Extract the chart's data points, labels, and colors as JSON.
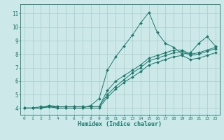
{
  "xlabel": "Humidex (Indice chaleur)",
  "ylabel": "",
  "bg_color": "#cce8e8",
  "grid_color": "#aacccc",
  "line_color": "#1a7a6e",
  "xlim": [
    -0.5,
    23.5
  ],
  "ylim": [
    3.5,
    11.7
  ],
  "xticks": [
    0,
    1,
    2,
    3,
    4,
    5,
    6,
    7,
    8,
    9,
    10,
    11,
    12,
    13,
    14,
    15,
    16,
    17,
    18,
    19,
    20,
    21,
    22,
    23
  ],
  "yticks": [
    4,
    5,
    6,
    7,
    8,
    9,
    10,
    11
  ],
  "series": [
    [
      4.0,
      4.0,
      4.1,
      4.1,
      4.0,
      4.0,
      4.0,
      4.0,
      4.2,
      4.7,
      6.8,
      7.8,
      8.6,
      9.4,
      10.3,
      11.1,
      9.6,
      8.8,
      8.5,
      8.0,
      8.1,
      8.8,
      9.3,
      8.6
    ],
    [
      4.0,
      4.0,
      4.0,
      4.2,
      4.1,
      4.1,
      4.1,
      4.1,
      4.1,
      4.1,
      5.3,
      6.0,
      6.4,
      6.8,
      7.2,
      7.7,
      7.9,
      8.1,
      8.3,
      8.3,
      8.0,
      8.1,
      8.3,
      8.5
    ],
    [
      4.0,
      4.0,
      4.0,
      4.1,
      4.1,
      4.1,
      4.1,
      4.1,
      4.1,
      4.1,
      5.0,
      5.6,
      6.1,
      6.6,
      7.0,
      7.5,
      7.7,
      7.9,
      8.1,
      8.2,
      7.9,
      8.0,
      8.2,
      8.4
    ],
    [
      4.0,
      4.0,
      4.0,
      4.1,
      4.0,
      4.0,
      4.0,
      4.0,
      4.0,
      4.0,
      4.8,
      5.4,
      5.9,
      6.3,
      6.7,
      7.2,
      7.4,
      7.6,
      7.8,
      7.9,
      7.6,
      7.7,
      7.9,
      8.1
    ]
  ]
}
